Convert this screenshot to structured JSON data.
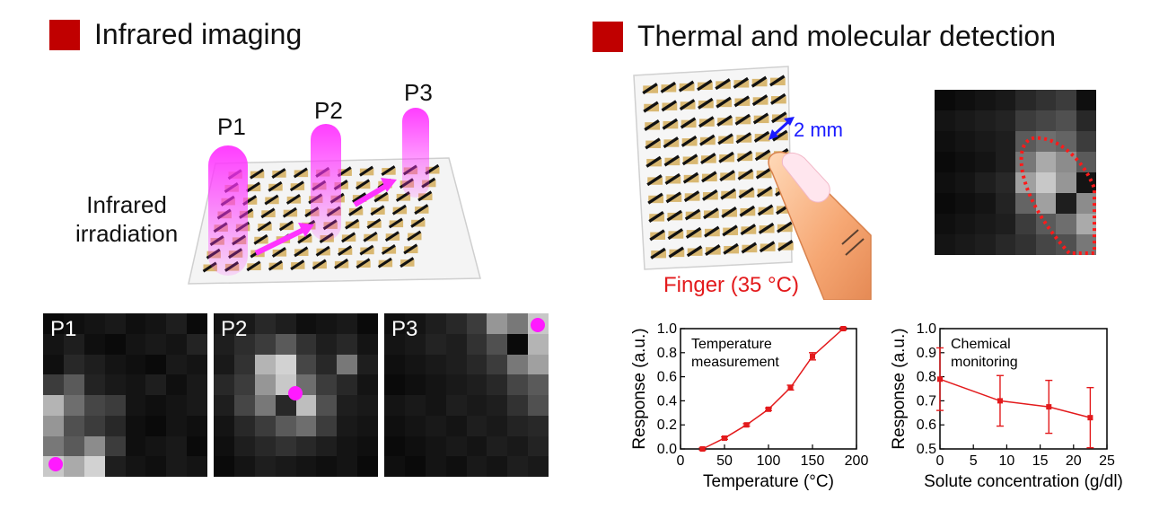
{
  "colors": {
    "accent_square": "#c00000",
    "beam": "#ff33ff",
    "finger_label": "#e31a1c",
    "distance_label": "#1a1aff",
    "plot_line": "#e31a1c"
  },
  "left": {
    "title": "Infrared imaging",
    "irradiation_label_1": "Infrared",
    "irradiation_label_2": "irradiation",
    "points": [
      "P1",
      "P2",
      "P3"
    ],
    "panels": [
      {
        "label": "P1"
      },
      {
        "label": "P2"
      },
      {
        "label": "P3"
      }
    ]
  },
  "right": {
    "title": "Thermal and molecular detection",
    "distance_label": "2 mm",
    "finger_label": "Finger (35 °C)"
  },
  "chart_data": [
    {
      "type": "line",
      "annotation": [
        "Temperature",
        "measurement"
      ],
      "xlabel": "Temperature (°C)",
      "ylabel": "Response (a.u.)",
      "xlim": [
        0,
        200
      ],
      "ylim": [
        0,
        1.0
      ],
      "xticks": [
        "0",
        "50",
        "100",
        "150",
        "200"
      ],
      "yticks": [
        "0.0",
        "0.2",
        "0.4",
        "0.6",
        "0.8",
        "1.0"
      ],
      "x": [
        25,
        50,
        75,
        100,
        125,
        150,
        185
      ],
      "y": [
        0.0,
        0.09,
        0.2,
        0.33,
        0.51,
        0.77,
        1.0
      ],
      "yerr": [
        0.01,
        0.01,
        0.01,
        0.01,
        0.02,
        0.03,
        0.01
      ]
    },
    {
      "type": "line",
      "annotation": [
        "Chemical",
        "monitoring"
      ],
      "xlabel": "Solute concentration (g/dl)",
      "ylabel": "Response (a.u.)",
      "xlim": [
        0,
        25
      ],
      "ylim": [
        0.5,
        1.0
      ],
      "xticks": [
        "0",
        "5",
        "10",
        "15",
        "20",
        "25"
      ],
      "yticks": [
        "0.5",
        "0.6",
        "0.7",
        "0.8",
        "0.9",
        "1.0"
      ],
      "x": [
        0,
        9,
        16.3,
        22.5
      ],
      "y": [
        0.79,
        0.7,
        0.675,
        0.63
      ],
      "yerr": [
        0.13,
        0.105,
        0.11,
        0.125
      ]
    }
  ]
}
